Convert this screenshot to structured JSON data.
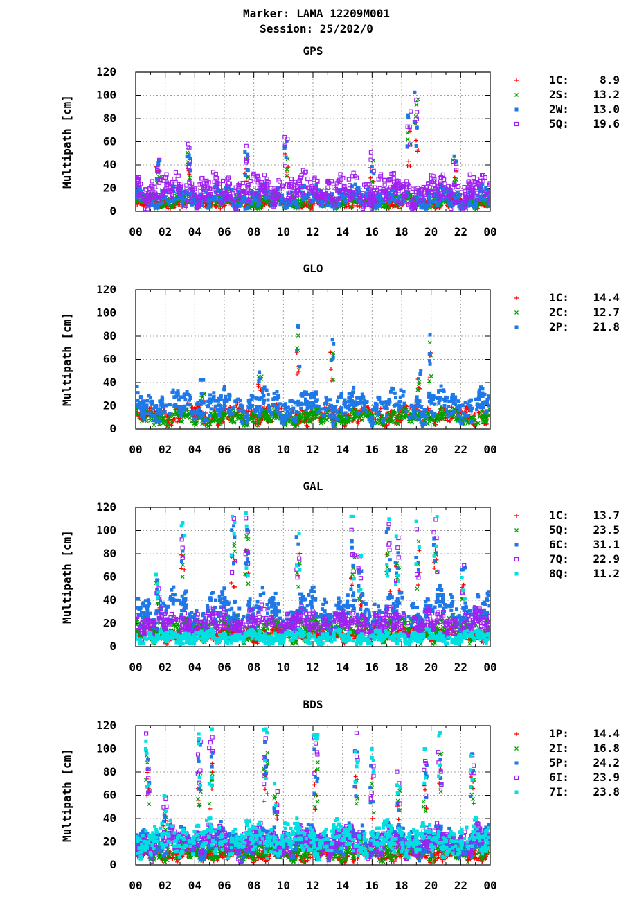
{
  "header": {
    "marker": "Marker: LAMA 12209M001",
    "session": "Session: 25/202/0"
  },
  "chart_data": [
    {
      "type": "scatter",
      "title": "GPS",
      "ylabel": "Multipath [cm]",
      "ylim": [
        0,
        120
      ],
      "y_ticks": [
        "0",
        "20",
        "40",
        "60",
        "80",
        "100",
        "120"
      ],
      "x_ticks": [
        "00",
        "02",
        "04",
        "06",
        "08",
        "10",
        "12",
        "14",
        "16",
        "18",
        "20",
        "22",
        "00"
      ],
      "xlim": [
        0,
        24
      ],
      "grid": true,
      "legend_position": "right",
      "series": [
        {
          "name": "1C:",
          "value": "8.9",
          "color": "#ff0000",
          "marker": "plus",
          "base": 7,
          "spread": 3
        },
        {
          "name": "2S:",
          "value": "13.2",
          "color": "#00a000",
          "marker": "cross",
          "base": 9,
          "spread": 5
        },
        {
          "name": "2W:",
          "value": "13.0",
          "color": "#1e78e6",
          "marker": "square",
          "base": 12,
          "spread": 7
        },
        {
          "name": "5Q:",
          "value": "19.6",
          "color": "#a020f0",
          "marker": "osquare",
          "base": 18,
          "spread": 10
        }
      ],
      "spikes": [
        [
          1.5,
          50,
          4
        ],
        [
          3.6,
          60,
          5
        ],
        [
          7.5,
          57,
          4
        ],
        [
          10.2,
          65,
          4
        ],
        [
          16,
          52,
          3
        ],
        [
          18.5,
          95,
          4
        ],
        [
          19,
          117,
          4
        ],
        [
          21.6,
          52,
          3
        ]
      ]
    },
    {
      "type": "scatter",
      "title": "GLO",
      "ylabel": "Multipath [cm]",
      "ylim": [
        0,
        120
      ],
      "y_ticks": [
        "0",
        "20",
        "40",
        "60",
        "80",
        "100",
        "120"
      ],
      "x_ticks": [
        "00",
        "02",
        "04",
        "06",
        "08",
        "10",
        "12",
        "14",
        "16",
        "18",
        "20",
        "22",
        "00"
      ],
      "xlim": [
        0,
        24
      ],
      "grid": true,
      "legend_position": "right",
      "series": [
        {
          "name": "1C:",
          "value": "14.4",
          "color": "#ff0000",
          "marker": "plus",
          "base": 12,
          "spread": 6
        },
        {
          "name": "2C:",
          "value": "12.7",
          "color": "#00a000",
          "marker": "cross",
          "base": 10,
          "spread": 5
        },
        {
          "name": "2P:",
          "value": "21.8",
          "color": "#1e78e6",
          "marker": "square",
          "base": 20,
          "spread": 9
        }
      ],
      "spikes": [
        [
          4.5,
          45,
          3
        ],
        [
          8.4,
          62,
          4
        ],
        [
          11,
          100,
          4
        ],
        [
          13.3,
          85,
          4
        ],
        [
          19.2,
          62,
          3
        ],
        [
          19.9,
          88,
          4
        ]
      ]
    },
    {
      "type": "scatter",
      "title": "GAL",
      "ylabel": "Multipath [cm]",
      "ylim": [
        0,
        120
      ],
      "y_ticks": [
        "0",
        "20",
        "40",
        "60",
        "80",
        "100",
        "120"
      ],
      "x_ticks": [
        "00",
        "02",
        "04",
        "06",
        "08",
        "10",
        "12",
        "14",
        "16",
        "18",
        "20",
        "22",
        "00"
      ],
      "xlim": [
        0,
        24
      ],
      "grid": true,
      "legend_position": "right",
      "series": [
        {
          "name": "1C:",
          "value": "13.7",
          "color": "#ff0000",
          "marker": "plus",
          "base": 11,
          "spread": 4
        },
        {
          "name": "5Q:",
          "value": "23.5",
          "color": "#00a000",
          "marker": "cross",
          "base": 15,
          "spread": 8
        },
        {
          "name": "6C:",
          "value": "31.1",
          "color": "#1e78e6",
          "marker": "square",
          "base": 30,
          "spread": 10
        },
        {
          "name": "7Q:",
          "value": "22.9",
          "color": "#a020f0",
          "marker": "osquare",
          "base": 20,
          "spread": 8
        },
        {
          "name": "8Q:",
          "value": "11.2",
          "color": "#00e0e0",
          "marker": "square",
          "base": 8,
          "spread": 4
        }
      ],
      "spikes": [
        [
          1.5,
          65,
          4
        ],
        [
          3.2,
          115,
          3
        ],
        [
          6.6,
          112,
          4
        ],
        [
          7.5,
          115,
          5
        ],
        [
          11,
          105,
          3
        ],
        [
          14.7,
          112,
          4
        ],
        [
          15.2,
          78,
          4
        ],
        [
          17.1,
          110,
          4
        ],
        [
          17.7,
          95,
          4
        ],
        [
          19.1,
          108,
          3
        ],
        [
          20.3,
          115,
          4
        ],
        [
          22.2,
          75,
          3
        ]
      ]
    },
    {
      "type": "scatter",
      "title": "BDS",
      "ylabel": "Multipath [cm]",
      "ylim": [
        0,
        120
      ],
      "y_ticks": [
        "0",
        "20",
        "40",
        "60",
        "80",
        "100",
        "120"
      ],
      "x_ticks": [
        "00",
        "02",
        "04",
        "06",
        "08",
        "10",
        "12",
        "14",
        "16",
        "18",
        "20",
        "22",
        "00"
      ],
      "xlim": [
        0,
        24
      ],
      "grid": true,
      "legend_position": "right",
      "series": [
        {
          "name": "1P:",
          "value": "14.4",
          "color": "#ff0000",
          "marker": "plus",
          "base": 9,
          "spread": 4
        },
        {
          "name": "2I:",
          "value": "16.8",
          "color": "#00a000",
          "marker": "cross",
          "base": 12,
          "spread": 6
        },
        {
          "name": "5P:",
          "value": "24.2",
          "color": "#1e78e6",
          "marker": "square",
          "base": 20,
          "spread": 9
        },
        {
          "name": "6I:",
          "value": "23.9",
          "color": "#a020f0",
          "marker": "osquare",
          "base": 20,
          "spread": 9
        },
        {
          "name": "7I:",
          "value": "23.8",
          "color": "#00e0e0",
          "marker": "square",
          "base": 22,
          "spread": 10
        }
      ],
      "spikes": [
        [
          0.8,
          115,
          5
        ],
        [
          2,
          60,
          3
        ],
        [
          4.3,
          117,
          5
        ],
        [
          5.1,
          118,
          4
        ],
        [
          8.8,
          117,
          5
        ],
        [
          9.5,
          70,
          3
        ],
        [
          12.2,
          112,
          5
        ],
        [
          14.9,
          115,
          4
        ],
        [
          16,
          100,
          4
        ],
        [
          17.8,
          83,
          3
        ],
        [
          19.6,
          100,
          4
        ],
        [
          20.6,
          118,
          4
        ],
        [
          22.8,
          110,
          4
        ]
      ]
    }
  ]
}
